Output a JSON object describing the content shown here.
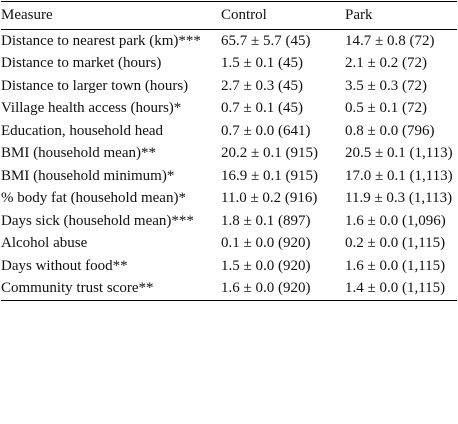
{
  "table": {
    "header": [
      "Measure",
      "Control",
      "Park"
    ],
    "rows": [
      [
        "Distance to nearest park (km)***",
        "65.7 ± 5.7 (45)",
        "14.7 ± 0.8 (72)"
      ],
      [
        "Distance to market (hours)",
        "1.5 ± 0.1 (45)",
        "2.1 ± 0.2 (72)"
      ],
      [
        "Distance to larger town (hours)",
        "2.7 ± 0.3 (45)",
        "3.5 ± 0.3 (72)"
      ],
      [
        "Village health access (hours)*",
        "0.7 ± 0.1 (45)",
        "0.5 ± 0.1 (72)"
      ],
      [
        "Education, household head",
        "0.7 ± 0.0 (641)",
        "0.8 ± 0.0 (796)"
      ],
      [
        "BMI (household mean)**",
        "20.2 ± 0.1 (915)",
        "20.5 ± 0.1 (1,113)"
      ],
      [
        "BMI (household minimum)*",
        "16.9 ± 0.1 (915)",
        "17.0 ± 0.1 (1,113)"
      ],
      [
        "% body fat (household mean)*",
        "11.0 ± 0.2 (916)",
        "11.9 ± 0.3 (1,113)"
      ],
      [
        "Days sick (household mean)***",
        "1.8 ± 0.1 (897)",
        "1.6 ± 0.0 (1,096)"
      ],
      [
        "Alcohol abuse",
        "0.1 ± 0.0 (920)",
        "0.2 ± 0.0 (1,115)"
      ],
      [
        "Days without food**",
        "1.5 ± 0.0 (920)",
        "1.6 ± 0.0 (1,115)"
      ],
      [
        "Community trust score**",
        "1.6 ± 0.0 (920)",
        "1.4 ± 0.0 (1,115)"
      ]
    ]
  }
}
